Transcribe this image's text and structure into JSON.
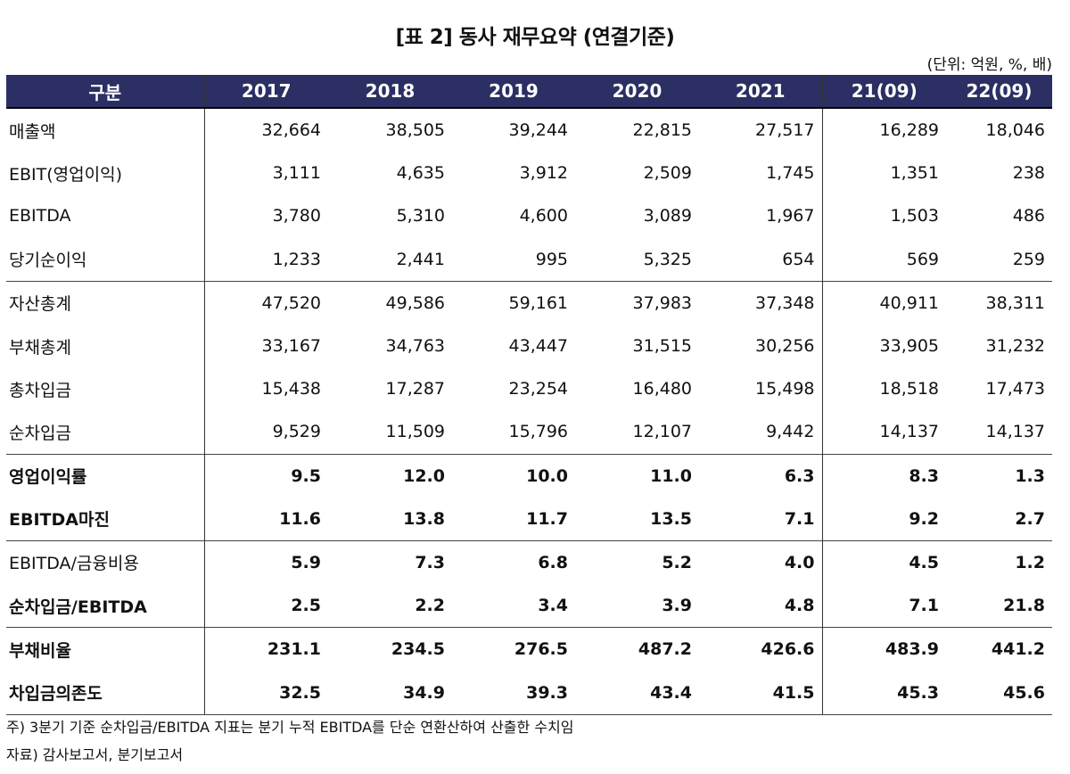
{
  "title": "[표 2] 동사 재무요약 (연결기준)",
  "unit": "(단위: 억원, %, 배)",
  "columns": [
    "구분",
    "2017",
    "2018",
    "2019",
    "2020",
    "2021",
    "21(09)",
    "22(09)"
  ],
  "rows": [
    {
      "label": "매출액",
      "values": [
        "32,664",
        "38,505",
        "39,244",
        "22,815",
        "27,517",
        "16,289",
        "18,046"
      ],
      "label_bold": false,
      "values_bold": false,
      "sep": false
    },
    {
      "label": "EBIT(영업이익)",
      "values": [
        "3,111",
        "4,635",
        "3,912",
        "2,509",
        "1,745",
        "1,351",
        "238"
      ],
      "label_bold": false,
      "values_bold": false,
      "sep": false
    },
    {
      "label": "EBITDA",
      "values": [
        "3,780",
        "5,310",
        "4,600",
        "3,089",
        "1,967",
        "1,503",
        "486"
      ],
      "label_bold": false,
      "values_bold": false,
      "sep": false
    },
    {
      "label": "당기순이익",
      "values": [
        "1,233",
        "2,441",
        "995",
        "5,325",
        "654",
        "569",
        "259"
      ],
      "label_bold": false,
      "values_bold": false,
      "sep": false
    },
    {
      "label": "자산총계",
      "values": [
        "47,520",
        "49,586",
        "59,161",
        "37,983",
        "37,348",
        "40,911",
        "38,311"
      ],
      "label_bold": false,
      "values_bold": false,
      "sep": true
    },
    {
      "label": "부채총계",
      "values": [
        "33,167",
        "34,763",
        "43,447",
        "31,515",
        "30,256",
        "33,905",
        "31,232"
      ],
      "label_bold": false,
      "values_bold": false,
      "sep": false
    },
    {
      "label": "총차입금",
      "values": [
        "15,438",
        "17,287",
        "23,254",
        "16,480",
        "15,498",
        "18,518",
        "17,473"
      ],
      "label_bold": false,
      "values_bold": false,
      "sep": false
    },
    {
      "label": "순차입금",
      "values": [
        "9,529",
        "11,509",
        "15,796",
        "12,107",
        "9,442",
        "14,137",
        "14,137"
      ],
      "label_bold": false,
      "values_bold": false,
      "sep": false
    },
    {
      "label": "영업이익률",
      "values": [
        "9.5",
        "12.0",
        "10.0",
        "11.0",
        "6.3",
        "8.3",
        "1.3"
      ],
      "label_bold": true,
      "values_bold": true,
      "sep": true
    },
    {
      "label": "EBITDA마진",
      "values": [
        "11.6",
        "13.8",
        "11.7",
        "13.5",
        "7.1",
        "9.2",
        "2.7"
      ],
      "label_bold": true,
      "values_bold": true,
      "sep": false
    },
    {
      "label": "EBITDA/금융비용",
      "values": [
        "5.9",
        "7.3",
        "6.8",
        "5.2",
        "4.0",
        "4.5",
        "1.2"
      ],
      "label_bold": false,
      "values_bold": true,
      "sep": true
    },
    {
      "label": "순차입금/EBITDA",
      "values": [
        "2.5",
        "2.2",
        "3.4",
        "3.9",
        "4.8",
        "7.1",
        "21.8"
      ],
      "label_bold": true,
      "values_bold": true,
      "sep": false
    },
    {
      "label": "부채비율",
      "values": [
        "231.1",
        "234.5",
        "276.5",
        "487.2",
        "426.6",
        "483.9",
        "441.2"
      ],
      "label_bold": true,
      "values_bold": true,
      "sep": true
    },
    {
      "label": "차입금의존도",
      "values": [
        "32.5",
        "34.9",
        "39.3",
        "43.4",
        "41.5",
        "45.3",
        "45.6"
      ],
      "label_bold": true,
      "values_bold": true,
      "sep": false
    }
  ],
  "notes": [
    "주) 3분기 기준 순차입금/EBITDA 지표는 분기 누적 EBITDA를 단순 연환산하여 산출한 수치임",
    "자료) 감사보고서, 분기보고서"
  ],
  "colors": {
    "header_bg": "#2b2f63",
    "header_text": "#ffffff"
  }
}
